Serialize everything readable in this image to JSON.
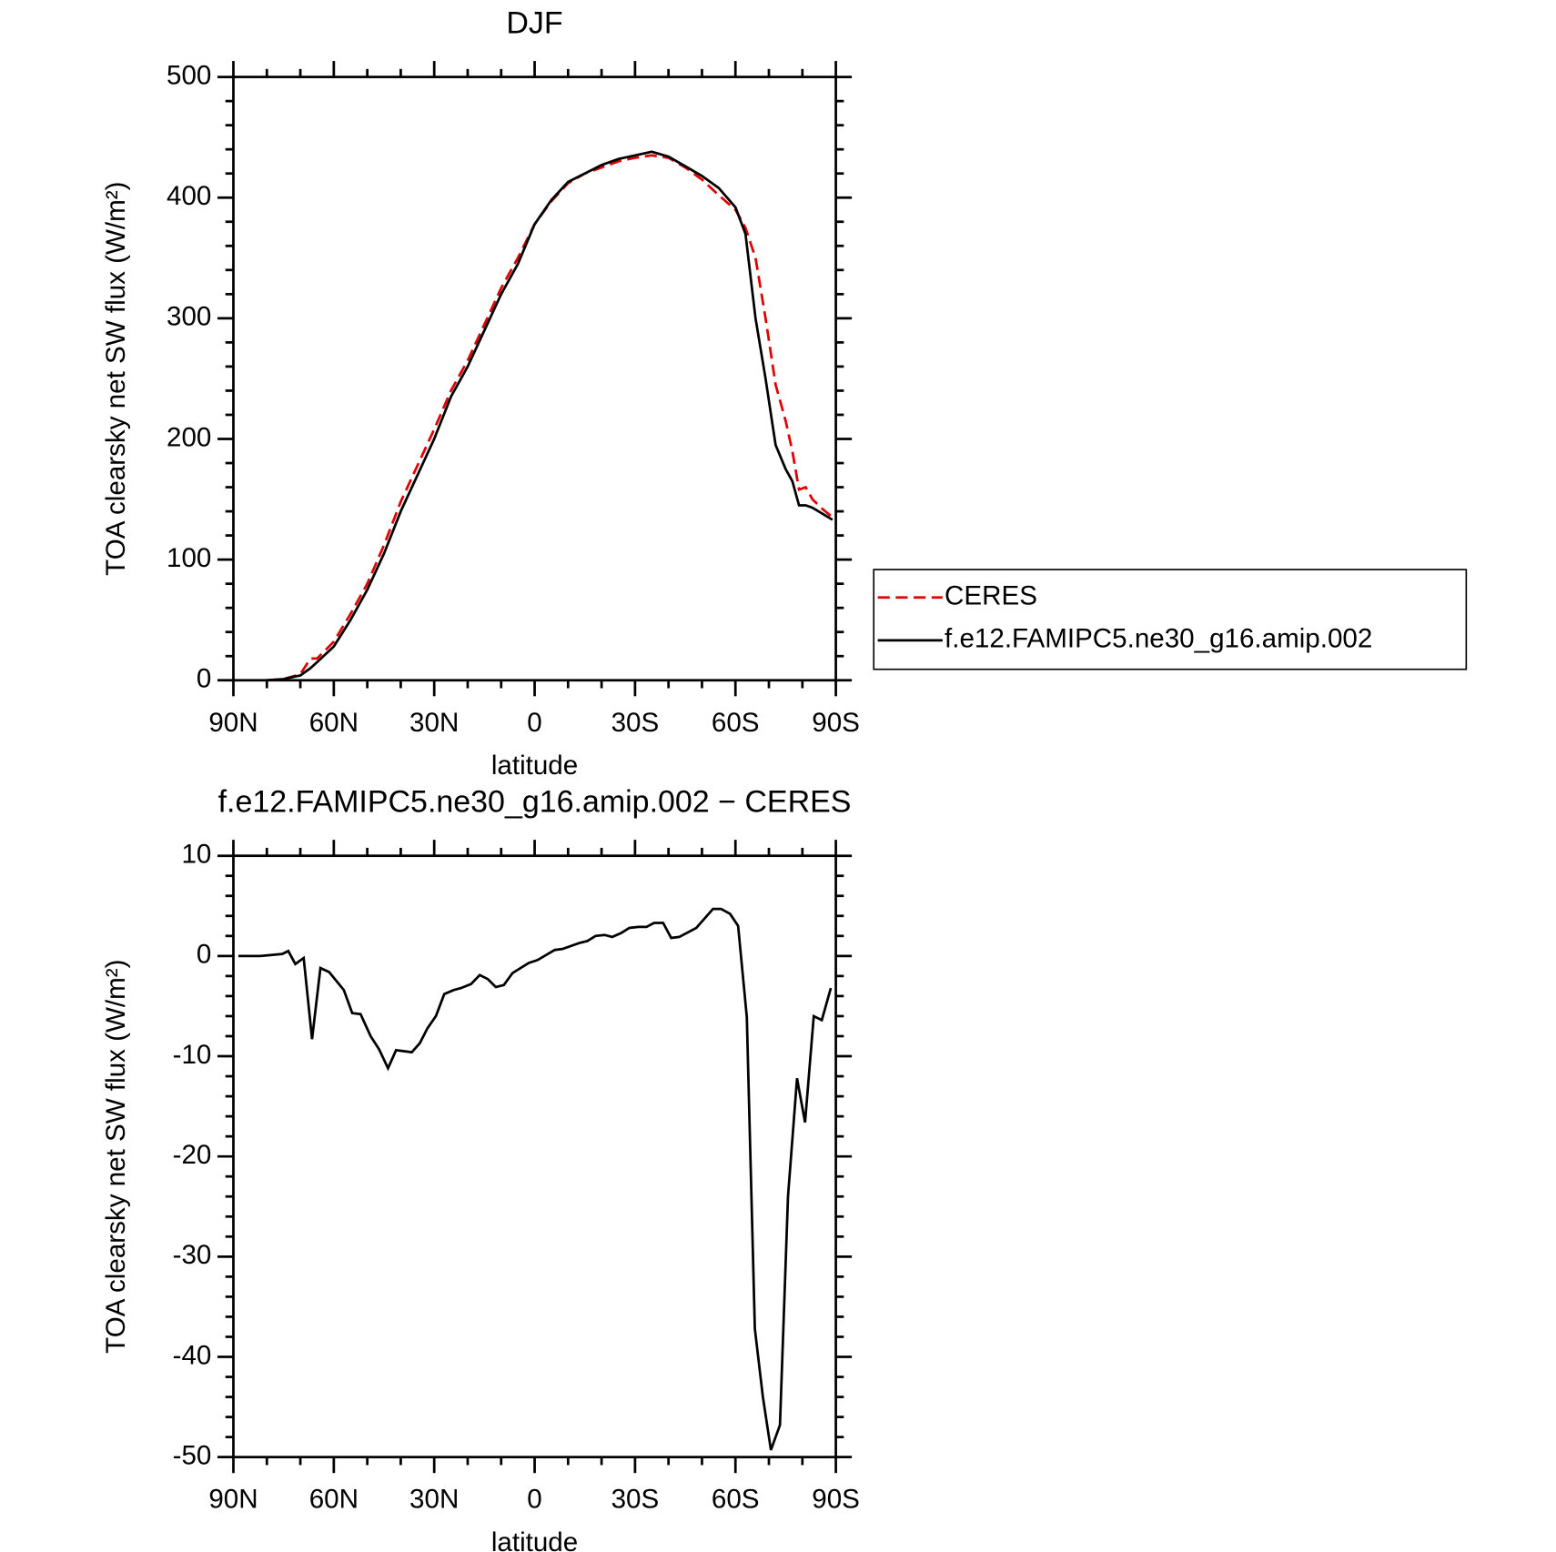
{
  "chart_data": [
    {
      "type": "line",
      "title": "DJF",
      "xlabel": "latitude",
      "ylabel": "TOA clearsky net SW flux (W/m²)",
      "x": [
        80,
        75,
        70,
        67,
        65,
        60,
        55,
        50,
        45,
        40,
        35,
        30,
        25,
        20,
        15,
        10,
        5,
        0,
        -5,
        -10,
        -15,
        -20,
        -25,
        -30,
        -35,
        -40,
        -45,
        -50,
        -55,
        -60,
        -63,
        -66,
        -69,
        -72,
        -75,
        -77,
        -79,
        -81,
        -83,
        -86,
        -89
      ],
      "series": [
        {
          "name": "CERES",
          "color": "#e00000",
          "dash": true,
          "values": [
            0,
            1,
            5,
            18,
            18,
            32,
            55,
            80,
            112,
            148,
            178,
            208,
            240,
            265,
            295,
            325,
            350,
            378,
            397,
            412,
            420,
            425,
            430,
            433,
            435,
            433,
            425,
            415,
            402,
            390,
            375,
            350,
            300,
            245,
            215,
            190,
            158,
            160,
            150,
            142,
            135
          ]
        },
        {
          "name": "f.e12.FAMIPC5.ne30_g16.amip.002",
          "color": "#000000",
          "dash": false,
          "values": [
            0,
            1,
            4,
            10,
            15,
            28,
            50,
            75,
            105,
            140,
            170,
            200,
            235,
            260,
            290,
            320,
            345,
            378,
            398,
            413,
            420,
            427,
            432,
            435,
            438,
            434,
            426,
            418,
            408,
            392,
            370,
            300,
            250,
            195,
            175,
            165,
            145,
            145,
            143,
            138,
            133
          ]
        }
      ],
      "xlim": [
        90,
        -90
      ],
      "xticks": [
        {
          "value": 90,
          "label": "90N"
        },
        {
          "value": 60,
          "label": "60N"
        },
        {
          "value": 30,
          "label": "30N"
        },
        0,
        {
          "value": -30,
          "label": "30S"
        },
        {
          "value": -60,
          "label": "60S"
        },
        {
          "value": -90,
          "label": "90S"
        }
      ],
      "ylim": [
        0,
        500
      ],
      "yticks": [
        0,
        100,
        200,
        300,
        400,
        500
      ],
      "legend": "right"
    },
    {
      "type": "line",
      "title": "f.e12.FAMIPC5.ne30_g16.amip.002 − CERES",
      "xlabel": "latitude",
      "ylabel": "TOA clearsky net SW flux (W/m²)",
      "x": [
        88.5,
        82,
        75.4,
        73.6,
        71.5,
        69,
        66.5,
        64,
        61.4,
        57,
        54.5,
        52,
        49,
        46.5,
        43.8,
        41.4,
        36.7,
        34.3,
        32,
        29.5,
        27,
        24.2,
        22,
        19,
        16.4,
        14,
        11.6,
        9.2,
        6.6,
        1.8,
        -0.9,
        -6,
        -8.3,
        -13.4,
        -15.8,
        -18.2,
        -20.9,
        -23.2,
        -25.9,
        -28.3,
        -31,
        -33.4,
        -35.7,
        -38.4,
        -40.8,
        -43.2,
        -48.3,
        -53.3,
        -55.7,
        -58.4,
        -60.8,
        -63.4,
        -65.8,
        -68.2,
        -70.6,
        -73.3,
        -75.7,
        -78.4,
        -80.8,
        -83.4,
        -85.8,
        -88.5
      ],
      "series": [
        {
          "color": "#000000",
          "dash": false,
          "values": [
            0,
            0,
            0.2,
            0.5,
            -0.8,
            -0.2,
            -8.3,
            -1.2,
            -1.6,
            -3.4,
            -5.7,
            -5.8,
            -8,
            -9.3,
            -11.2,
            -9.4,
            -9.6,
            -8.7,
            -7.2,
            -6,
            -3.8,
            -3.4,
            -3.2,
            -2.8,
            -1.9,
            -2.3,
            -3.1,
            -2.9,
            -1.7,
            -0.7,
            -0.4,
            0.6,
            0.7,
            1.3,
            1.5,
            2,
            2.1,
            1.9,
            2.3,
            2.8,
            2.9,
            2.9,
            3.3,
            3.3,
            1.8,
            1.9,
            2.8,
            4.7,
            4.7,
            4.2,
            3,
            -6.1,
            -37.2,
            -44,
            -49.3,
            -46.8,
            -24,
            -12.2,
            -16.6,
            -6,
            -6.4,
            -3.2
          ]
        }
      ],
      "xlim": [
        90,
        -90
      ],
      "xticks": [
        {
          "value": 90,
          "label": "90N"
        },
        {
          "value": 60,
          "label": "60N"
        },
        {
          "value": 30,
          "label": "30N"
        },
        0,
        {
          "value": -30,
          "label": "30S"
        },
        {
          "value": -60,
          "label": "60S"
        },
        {
          "value": -90,
          "label": "90S"
        }
      ],
      "ylim": [
        -50,
        10
      ],
      "yticks": [
        -50,
        -40,
        -30,
        -20,
        -10,
        0,
        10
      ]
    }
  ]
}
